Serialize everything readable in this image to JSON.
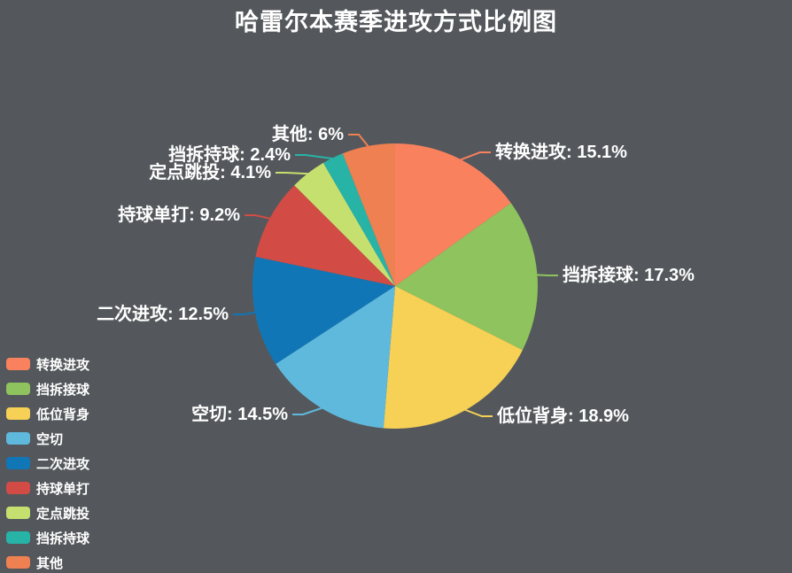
{
  "title": "哈雷尔本赛季进攻方式比例图",
  "colors": {
    "background": "#54585c",
    "text": "#ffffff"
  },
  "chart_data": {
    "type": "pie",
    "title": "哈雷尔本赛季进攻方式比例图",
    "legend_position": "bottom-left",
    "label_format": "{name}: {value}%",
    "start_angle_deg": 0,
    "direction": "clockwise",
    "series": [
      {
        "name": "转换进攻",
        "value": 15.1,
        "color": "#f9815e"
      },
      {
        "name": "挡拆接球",
        "value": 17.3,
        "color": "#8ec35e"
      },
      {
        "name": "低位背身",
        "value": 18.9,
        "color": "#f6d155"
      },
      {
        "name": "空切",
        "value": 14.5,
        "color": "#5fb9dd"
      },
      {
        "name": "二次进攻",
        "value": 12.5,
        "color": "#1176b6"
      },
      {
        "name": "持球单打",
        "value": 9.2,
        "color": "#d24b44"
      },
      {
        "name": "定点跳投",
        "value": 4.1,
        "color": "#c6e06f"
      },
      {
        "name": "挡拆持球",
        "value": 2.4,
        "color": "#28b3a7"
      },
      {
        "name": "其他",
        "value": 6,
        "color": "#ee8052"
      }
    ]
  }
}
